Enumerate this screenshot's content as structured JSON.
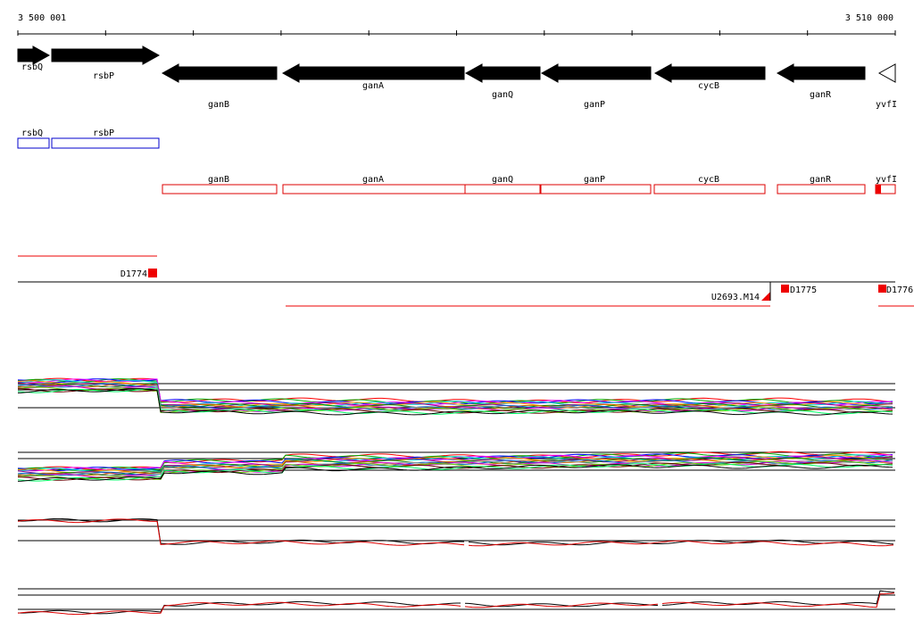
{
  "ruler": {
    "start": "3 500 001",
    "end": "3 510 000"
  },
  "genes": [
    "rsbQ",
    "rsbP",
    "ganB",
    "ganA",
    "ganQ",
    "ganP",
    "cycB",
    "ganR",
    "yvfI"
  ],
  "annotations": {
    "forward": [
      "rsbQ",
      "rsbP"
    ],
    "reverse": [
      "ganB",
      "ganA",
      "ganQ",
      "ganP",
      "cycB",
      "ganR",
      "yvfI"
    ]
  },
  "probes": [
    "D1774",
    "U2693.M14",
    "D1775",
    "D1776"
  ]
}
